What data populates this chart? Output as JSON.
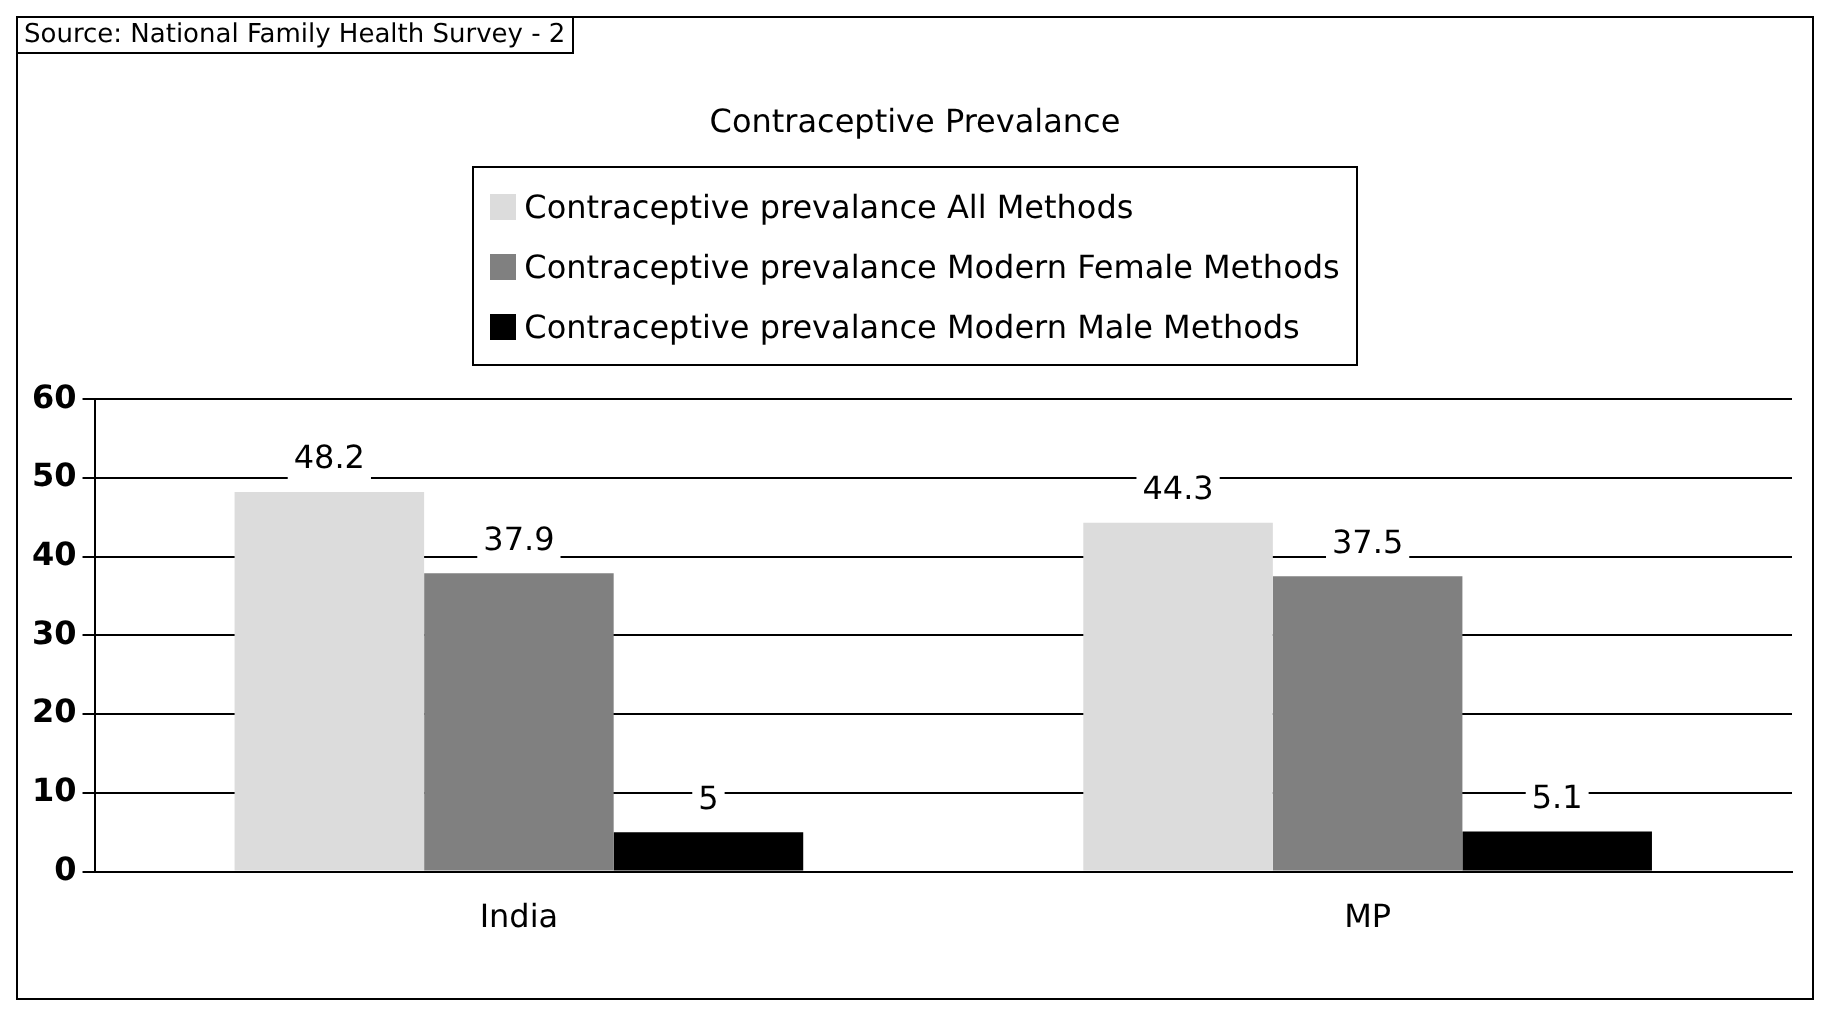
{
  "chart_data": {
    "type": "bar",
    "title": "Contraceptive Prevalance",
    "annotations": [
      "Source: National Family Health Survey - 2"
    ],
    "categories": [
      "India",
      "MP"
    ],
    "series": [
      {
        "name": "Contraceptive prevalance  All Methods",
        "color": "#dcdcdc",
        "values": [
          48.2,
          44.3
        ]
      },
      {
        "name": "Contraceptive prevalance  Modern Female Methods",
        "color": "#808080",
        "values": [
          37.9,
          37.5
        ]
      },
      {
        "name": "Contraceptive prevalance  Modern Male Methods",
        "color": "#000000",
        "values": [
          5,
          5.1
        ]
      }
    ],
    "ylim": [
      0,
      60
    ],
    "yticks": [
      0,
      10,
      20,
      30,
      40,
      50,
      60
    ],
    "grid": "y",
    "legend": "top",
    "data_labels": true
  }
}
